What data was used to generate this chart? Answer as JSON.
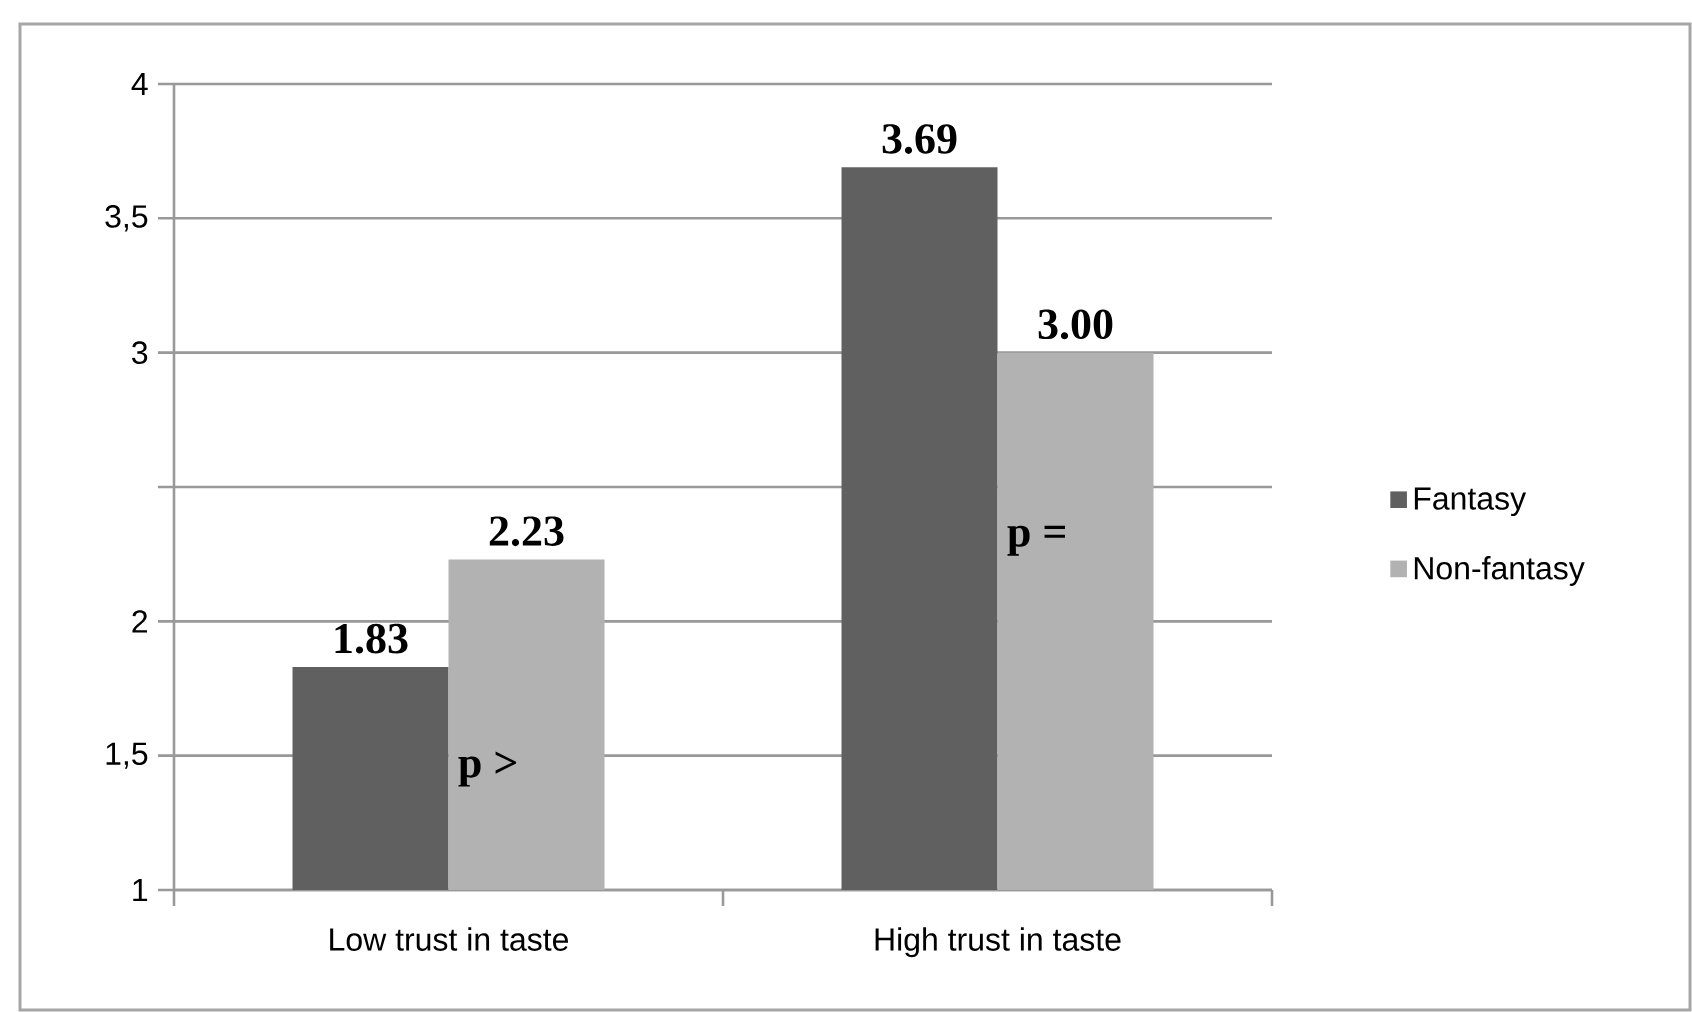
{
  "chart_data": {
    "type": "bar",
    "categories": [
      "Low trust in taste",
      "High trust in taste"
    ],
    "series": [
      {
        "name": "Fantasy",
        "color": "#606060",
        "values": [
          1.83,
          3.69
        ],
        "value_labels": [
          "1.83",
          "3.69"
        ]
      },
      {
        "name": "Non-fantasy",
        "color": "#b2b2b2",
        "values": [
          2.23,
          3.0
        ],
        "value_labels": [
          "2.23",
          "3.00"
        ]
      }
    ],
    "ylim": [
      1,
      4
    ],
    "yticks": [
      1,
      {
        "value": 1.5,
        "label": "1,5"
      },
      2,
      {
        "value": 2.5,
        "label": null
      },
      3,
      {
        "value": 3.5,
        "label": "3,5"
      },
      4
    ],
    "grid": "y",
    "legend": "right",
    "annotations": [
      {
        "text": "p >",
        "x": "Low trust in taste",
        "y": 1.45
      },
      {
        "text": "p =",
        "x": "High trust in taste",
        "y": 2.3
      }
    ]
  }
}
